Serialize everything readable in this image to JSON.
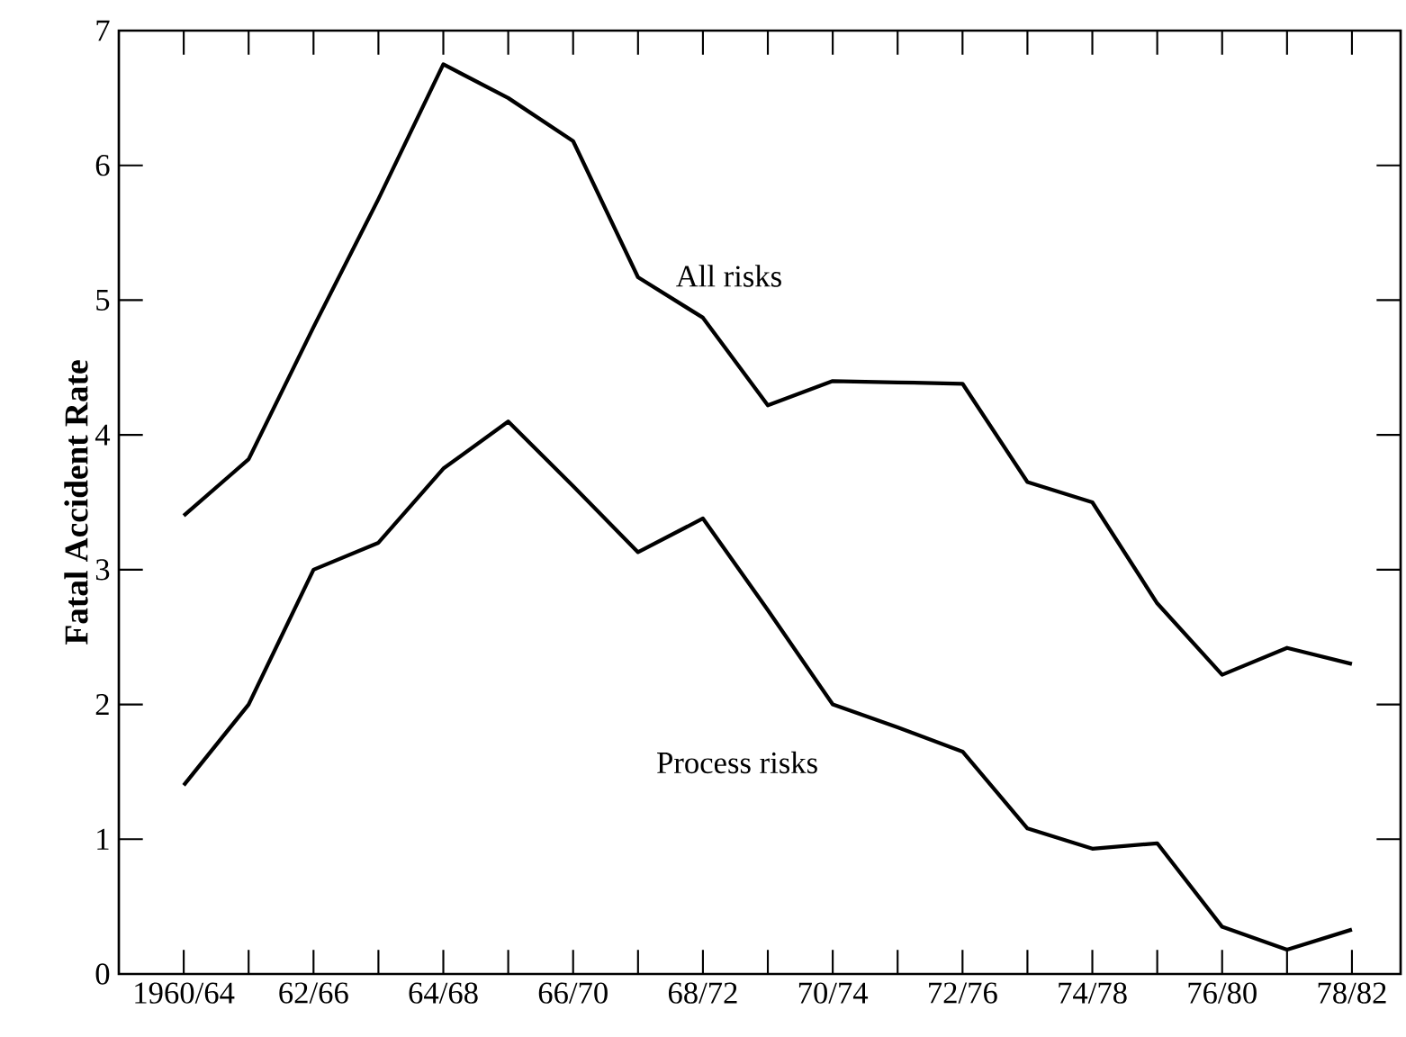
{
  "chart_data": {
    "type": "line",
    "ylabel": "Fatal Accident Rate",
    "categories": [
      "1960/64",
      null,
      "62/66",
      null,
      "64/68",
      null,
      "66/70",
      null,
      "68/72",
      null,
      "70/74",
      null,
      "72/76",
      null,
      "74/78",
      null,
      "76/80",
      null,
      "78/82"
    ],
    "series": [
      {
        "name": "All risks",
        "color": "#000000",
        "values": [
          3.4,
          3.82,
          4.8,
          5.75,
          6.75,
          6.5,
          6.18,
          5.17,
          4.87,
          4.22,
          4.4,
          4.39,
          4.38,
          3.65,
          3.5,
          2.75,
          2.22,
          2.42,
          2.3
        ]
      },
      {
        "name": "Process risks",
        "color": "#000000",
        "values": [
          1.4,
          2.0,
          3.0,
          3.2,
          3.75,
          4.1,
          3.62,
          3.13,
          3.38,
          2.7,
          2.0,
          1.83,
          1.65,
          1.08,
          0.93,
          0.97,
          0.35,
          0.18,
          0.33
        ]
      }
    ],
    "ylim": [
      0,
      7
    ],
    "yticks": [
      0,
      1,
      2,
      3,
      4,
      5,
      6,
      7
    ]
  }
}
